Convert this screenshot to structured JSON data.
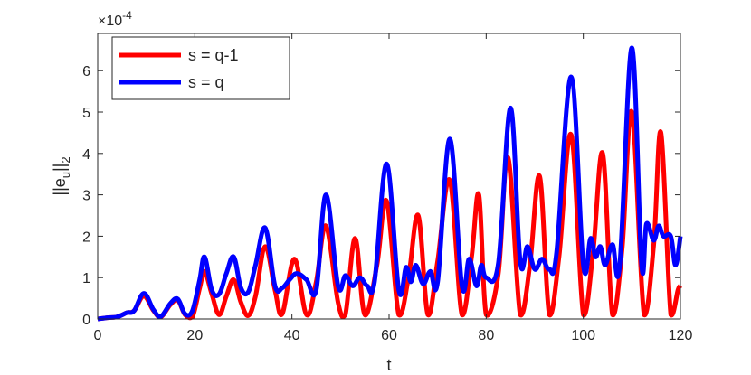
{
  "chart_data": {
    "type": "line",
    "title": "",
    "xlabel": "t",
    "ylabel_main": "||e",
    "ylabel_sub_u": "u",
    "ylabel_close": "||",
    "ylabel_sub_2": "2",
    "y_exponent_label": "×10",
    "y_exponent_power": "-4",
    "xlim": [
      0,
      120
    ],
    "ylim": [
      0,
      6.9
    ],
    "xticks": [
      0,
      20,
      40,
      60,
      80,
      100,
      120
    ],
    "yticks": [
      0,
      1,
      2,
      3,
      4,
      5,
      6
    ],
    "grid": false,
    "legend_position": "top-left",
    "series": [
      {
        "name": "s = q-1",
        "color": "#ff0000",
        "x": [
          0,
          2,
          4,
          6,
          7.5,
          9.5,
          11.5,
          13,
          15,
          16.5,
          18,
          19.5,
          21,
          22,
          23.5,
          25,
          26.5,
          28,
          29.5,
          31,
          32.5,
          34.5,
          36.5,
          38,
          40.5,
          43,
          45,
          47,
          49.5,
          51,
          53,
          55,
          57.5,
          59.5,
          62,
          64,
          66,
          68,
          70,
          72.5,
          75,
          77,
          78.5,
          80,
          82.5,
          84.5,
          87,
          89,
          91,
          93,
          95,
          97.5,
          100,
          102,
          104,
          106,
          108,
          110,
          112.5,
          114.5,
          116,
          118,
          119.5,
          120
        ],
        "values": [
          0,
          0.03,
          0.05,
          0.15,
          0.2,
          0.55,
          0.2,
          0.05,
          0.35,
          0.45,
          0.1,
          0.05,
          0.75,
          1.15,
          0.6,
          0.1,
          0.55,
          0.95,
          0.4,
          0.08,
          0.55,
          1.75,
          0.7,
          0.12,
          1.45,
          0.1,
          0.9,
          2.25,
          0.4,
          0.1,
          1.95,
          0.1,
          1.3,
          2.85,
          0.1,
          1.0,
          2.5,
          0.1,
          1.4,
          3.35,
          0.1,
          1.5,
          3.0,
          0.1,
          1.1,
          3.9,
          0.1,
          1.3,
          3.45,
          0.1,
          1.5,
          4.45,
          0.1,
          1.6,
          4.0,
          0.1,
          1.7,
          5.0,
          0.1,
          1.8,
          4.5,
          0.1,
          0.7,
          0.8
        ]
      },
      {
        "name": "s = q",
        "color": "#0000ff",
        "x": [
          0,
          2,
          4,
          6,
          7.5,
          9.5,
          11.5,
          13,
          15,
          16.5,
          18,
          19.5,
          21,
          22,
          23.5,
          25,
          26.5,
          28,
          29.5,
          31,
          32.5,
          34.5,
          36.5,
          38,
          39.5,
          41,
          43,
          45,
          47,
          49.5,
          51,
          52.5,
          54,
          55.5,
          57,
          59.5,
          62,
          63.5,
          64.5,
          65.5,
          67,
          68.5,
          70,
          72.5,
          75,
          76.5,
          78,
          79,
          80,
          82.5,
          85,
          87,
          88.5,
          90,
          91.5,
          93,
          94.5,
          97.5,
          100,
          101.5,
          102.5,
          103.5,
          104.5,
          106,
          107.5,
          110,
          112,
          113,
          114.5,
          115.5,
          116.5,
          118,
          119,
          120
        ],
        "values": [
          0,
          0.03,
          0.05,
          0.15,
          0.2,
          0.62,
          0.22,
          0.06,
          0.38,
          0.48,
          0.12,
          0.2,
          0.95,
          1.5,
          0.7,
          0.6,
          1.1,
          1.5,
          0.75,
          0.65,
          1.3,
          2.2,
          0.8,
          0.75,
          0.95,
          1.1,
          0.95,
          0.7,
          3.0,
          0.8,
          1.05,
          0.8,
          1.0,
          0.8,
          0.9,
          3.75,
          0.7,
          1.25,
          0.9,
          1.3,
          0.85,
          1.15,
          0.9,
          4.35,
          0.8,
          1.45,
          0.8,
          1.3,
          1.0,
          1.35,
          5.1,
          1.4,
          1.75,
          1.2,
          1.45,
          1.2,
          1.6,
          5.85,
          1.3,
          1.95,
          1.5,
          1.75,
          1.3,
          1.8,
          1.3,
          6.55,
          1.3,
          2.3,
          1.9,
          2.25,
          2.0,
          2.0,
          1.3,
          2.0
        ]
      }
    ]
  }
}
